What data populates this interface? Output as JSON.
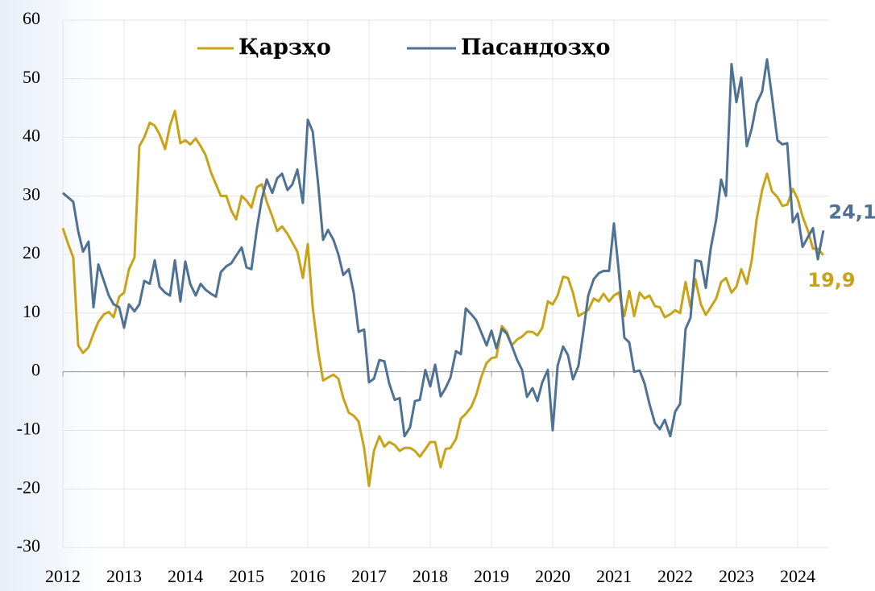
{
  "chart_data": {
    "type": "line",
    "legend": "top",
    "grid": true,
    "xlim": [
      2012,
      2024.5
    ],
    "xticks": [
      2012,
      2013,
      2014,
      2015,
      2016,
      2017,
      2018,
      2019,
      2020,
      2021,
      2022,
      2023,
      2024
    ],
    "ylim": [
      -30,
      60
    ],
    "yticks": [
      -30,
      -20,
      -10,
      0,
      10,
      20,
      30,
      40,
      50,
      60
    ],
    "x": [
      2012,
      2012.08,
      2012.17,
      2012.25,
      2012.33,
      2012.42,
      2012.5,
      2012.58,
      2012.67,
      2012.75,
      2012.83,
      2012.92,
      2013,
      2013.08,
      2013.17,
      2013.25,
      2013.33,
      2013.42,
      2013.5,
      2013.58,
      2013.67,
      2013.75,
      2013.83,
      2013.92,
      2014,
      2014.08,
      2014.17,
      2014.25,
      2014.33,
      2014.42,
      2014.5,
      2014.58,
      2014.67,
      2014.75,
      2014.83,
      2014.92,
      2015,
      2015.08,
      2015.17,
      2015.25,
      2015.33,
      2015.42,
      2015.5,
      2015.58,
      2015.67,
      2015.75,
      2015.83,
      2015.92,
      2016,
      2016.08,
      2016.17,
      2016.25,
      2016.33,
      2016.42,
      2016.5,
      2016.58,
      2016.67,
      2016.75,
      2016.83,
      2016.92,
      2017,
      2017.08,
      2017.17,
      2017.25,
      2017.33,
      2017.42,
      2017.5,
      2017.58,
      2017.67,
      2017.75,
      2017.83,
      2017.92,
      2018,
      2018.08,
      2018.17,
      2018.25,
      2018.33,
      2018.42,
      2018.5,
      2018.58,
      2018.67,
      2018.75,
      2018.83,
      2018.92,
      2019,
      2019.08,
      2019.17,
      2019.25,
      2019.33,
      2019.42,
      2019.5,
      2019.58,
      2019.67,
      2019.75,
      2019.83,
      2019.92,
      2020,
      2020.08,
      2020.17,
      2020.25,
      2020.33,
      2020.42,
      2020.5,
      2020.58,
      2020.67,
      2020.75,
      2020.83,
      2020.92,
      2021,
      2021.08,
      2021.17,
      2021.25,
      2021.33,
      2021.42,
      2021.5,
      2021.58,
      2021.67,
      2021.75,
      2021.83,
      2021.92,
      2022,
      2022.08,
      2022.17,
      2022.25,
      2022.33,
      2022.42,
      2022.5,
      2022.58,
      2022.67,
      2022.75,
      2022.83,
      2022.92,
      2023,
      2023.08,
      2023.17,
      2023.25,
      2023.33,
      2023.42,
      2023.5,
      2023.58,
      2023.67,
      2023.75,
      2023.83,
      2023.92,
      2024,
      2024.08,
      2024.17,
      2024.25,
      2024.33,
      2024.42
    ],
    "series": [
      {
        "name": "Қарзҳо",
        "color": "#c9a317",
        "values": [
          24.5,
          22,
          19.5,
          4.5,
          3.2,
          4.2,
          6.5,
          8.5,
          9.8,
          10.2,
          9.3,
          12.8,
          13.5,
          17.5,
          19.5,
          38.5,
          40,
          42.5,
          42,
          40.5,
          38,
          42,
          44.5,
          39,
          39.5,
          38.8,
          39.8,
          38.5,
          37,
          34,
          32,
          30,
          30,
          27.5,
          26,
          30,
          29.2,
          28,
          31.5,
          32,
          29,
          26.5,
          24,
          24.8,
          23.5,
          22,
          20.5,
          16,
          21.8,
          11,
          3.5,
          -1.5,
          -1,
          -0.5,
          -1.2,
          -4.5,
          -7,
          -7.5,
          -8.5,
          -13,
          -19.5,
          -13.5,
          -11,
          -12.8,
          -12,
          -12.5,
          -13.5,
          -13,
          -13,
          -13.5,
          -14.5,
          -13.2,
          -12,
          -12,
          -16.3,
          -13.2,
          -13,
          -11.5,
          -8,
          -7.2,
          -6,
          -4,
          -1,
          1.5,
          2.3,
          2.5,
          7.8,
          6.8,
          4.5,
          5.5,
          6,
          6.8,
          6.8,
          6.2,
          7.5,
          12,
          11.5,
          13,
          16.2,
          16,
          13.5,
          9.5,
          10,
          10.5,
          12.5,
          12,
          13.3,
          12,
          13,
          13.5,
          9.5,
          13.8,
          9.5,
          13.5,
          12.5,
          13,
          11.2,
          11,
          9.3,
          9.8,
          10.5,
          10,
          15.3,
          11,
          15.8,
          11.5,
          9.7,
          11,
          12.5,
          15.3,
          16,
          13.5,
          14.5,
          17.5,
          15,
          19,
          26,
          31,
          33.8,
          30.8,
          29.8,
          28.3,
          28.5,
          31.2,
          29.5,
          26.5,
          24,
          21,
          21,
          19.9
        ],
        "value_labels": [
          null,
          null,
          null,
          null,
          null,
          null,
          null,
          null,
          null,
          null,
          null,
          null,
          null,
          null,
          null,
          null,
          null,
          null,
          null,
          null,
          null,
          null,
          null,
          null,
          null,
          null,
          null,
          null,
          null,
          null,
          null,
          null,
          null,
          null,
          null,
          null,
          null,
          null,
          null,
          null,
          null,
          null,
          null,
          null,
          null,
          null,
          null,
          null,
          null,
          null,
          null,
          null,
          null,
          null,
          null,
          null,
          null,
          null,
          null,
          null,
          null,
          null,
          null,
          null,
          null,
          null,
          null,
          null,
          null,
          null,
          null,
          null,
          null,
          null,
          null,
          null,
          null,
          null,
          null,
          null,
          null,
          null,
          null,
          null,
          null,
          null,
          null,
          null,
          null,
          null,
          null,
          null,
          null,
          null,
          null,
          null,
          null,
          null,
          null,
          null,
          null,
          null,
          null,
          null,
          null,
          null,
          null,
          null,
          null,
          null,
          null,
          null,
          null,
          null,
          null,
          null,
          null,
          null,
          null,
          null,
          null,
          null,
          null,
          null,
          null,
          null,
          null,
          null,
          null,
          null,
          null,
          null,
          null,
          null,
          null,
          null,
          null,
          null,
          null,
          null,
          null,
          null,
          null,
          null,
          null,
          null,
          null,
          null,
          null,
          "19,9"
        ]
      },
      {
        "name": "Пасандозҳо",
        "color": "#4f7194",
        "values": [
          30.5,
          29.8,
          29,
          24,
          20.5,
          22.2,
          11,
          18.3,
          15.5,
          13,
          11.5,
          11,
          7.5,
          11.5,
          10.3,
          11.5,
          15.5,
          15,
          19,
          14.5,
          13.5,
          13,
          19,
          12,
          18.8,
          15,
          13,
          15,
          14,
          13.3,
          12.8,
          17,
          18,
          18.5,
          19.8,
          21.2,
          17.8,
          17.5,
          24.5,
          29.5,
          32.8,
          30.5,
          33,
          33.8,
          31,
          32,
          34.5,
          28.8,
          43,
          41,
          32,
          22.5,
          24.2,
          22.5,
          20,
          16.5,
          17.5,
          13.5,
          6.8,
          7.2,
          -1.8,
          -1.2,
          2,
          1.8,
          -2,
          -4.8,
          -4.5,
          -11,
          -9.5,
          -5,
          -4.8,
          0.3,
          -2.5,
          1.2,
          -4.2,
          -2.8,
          -1,
          3.5,
          3,
          10.8,
          9.8,
          8.8,
          6.8,
          4.5,
          7,
          4,
          7.3,
          6.5,
          4.5,
          2,
          0.3,
          -4.3,
          -2.8,
          -5,
          -1.8,
          0.3,
          -10,
          1,
          4.3,
          2.8,
          -1.3,
          1,
          6.8,
          13,
          15.8,
          16.8,
          17.2,
          17.2,
          25.3,
          17,
          5.8,
          5,
          0,
          0.2,
          -2,
          -5.5,
          -8.8,
          -9.8,
          -8.2,
          -11,
          -6.8,
          -5.5,
          7.3,
          9.2,
          19,
          18.8,
          14.3,
          21,
          26,
          32.8,
          30,
          52.5,
          46,
          50.2,
          38.5,
          41.5,
          45.8,
          47.8,
          53.3,
          47,
          39.5,
          38.8,
          39,
          25.5,
          27,
          21.3,
          23,
          24.5,
          19.2,
          24.1
        ],
        "value_labels": [
          null,
          null,
          null,
          null,
          null,
          null,
          null,
          null,
          null,
          null,
          null,
          null,
          null,
          null,
          null,
          null,
          null,
          null,
          null,
          null,
          null,
          null,
          null,
          null,
          null,
          null,
          null,
          null,
          null,
          null,
          null,
          null,
          null,
          null,
          null,
          null,
          null,
          null,
          null,
          null,
          null,
          null,
          null,
          null,
          null,
          null,
          null,
          null,
          null,
          null,
          null,
          null,
          null,
          null,
          null,
          null,
          null,
          null,
          null,
          null,
          null,
          null,
          null,
          null,
          null,
          null,
          null,
          null,
          null,
          null,
          null,
          null,
          null,
          null,
          null,
          null,
          null,
          null,
          null,
          null,
          null,
          null,
          null,
          null,
          null,
          null,
          null,
          null,
          null,
          null,
          null,
          null,
          null,
          null,
          null,
          null,
          null,
          null,
          null,
          null,
          null,
          null,
          null,
          null,
          null,
          null,
          null,
          null,
          null,
          null,
          null,
          null,
          null,
          null,
          null,
          null,
          null,
          null,
          null,
          null,
          null,
          null,
          null,
          null,
          null,
          null,
          null,
          null,
          null,
          null,
          null,
          null,
          null,
          null,
          null,
          null,
          null,
          null,
          null,
          null,
          null,
          null,
          null,
          null,
          null,
          null,
          null,
          null,
          null,
          "24,1"
        ]
      }
    ]
  }
}
